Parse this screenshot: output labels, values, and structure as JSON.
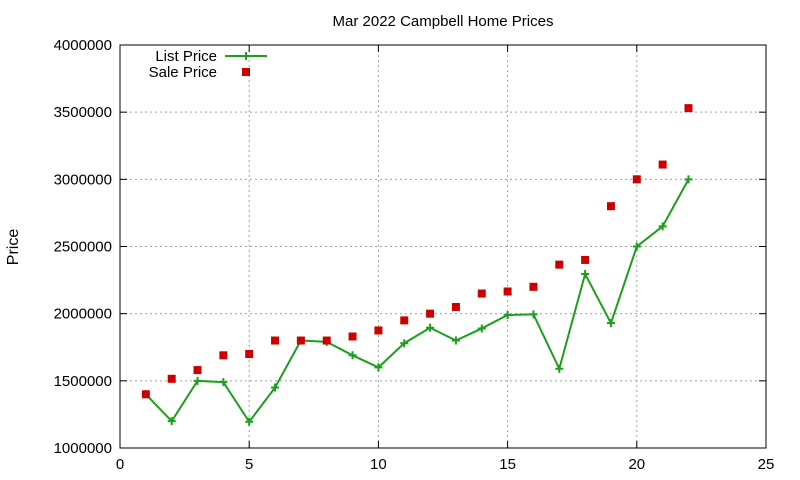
{
  "chart_data": {
    "type": "line",
    "title": "Mar 2022 Campbell Home Prices",
    "xlabel": "",
    "ylabel": "Price",
    "xlim": [
      0,
      25
    ],
    "ylim": [
      1000000,
      4000000
    ],
    "xticks": [
      0,
      5,
      10,
      15,
      20,
      25
    ],
    "yticks": [
      1000000,
      1500000,
      2000000,
      2500000,
      3000000,
      3500000,
      4000000
    ],
    "grid": true,
    "legend_position": "top-left",
    "series": [
      {
        "name": "List Price",
        "style": "line-plus",
        "color": "#1aa01a",
        "x": [
          1,
          2,
          3,
          4,
          5,
          6,
          7,
          8,
          9,
          10,
          11,
          12,
          13,
          14,
          15,
          16,
          17,
          18,
          19,
          20,
          21,
          22
        ],
        "y": [
          1400000,
          1200000,
          1500000,
          1490000,
          1195000,
          1450000,
          1800000,
          1790000,
          1690000,
          1600000,
          1780000,
          1895000,
          1800000,
          1890000,
          1990000,
          1995000,
          1590000,
          2295000,
          1930000,
          2500000,
          2650000,
          3000000
        ]
      },
      {
        "name": "Sale Price",
        "style": "square-marker",
        "color": "#cc0000",
        "x": [
          1,
          2,
          3,
          4,
          5,
          6,
          7,
          8,
          9,
          10,
          11,
          12,
          13,
          14,
          15,
          16,
          17,
          18,
          19,
          20,
          21,
          22
        ],
        "y": [
          1400000,
          1515000,
          1580000,
          1690000,
          1700000,
          1800000,
          1800000,
          1800000,
          1830000,
          1875000,
          1950000,
          2000000,
          2050000,
          2150000,
          2165000,
          2200000,
          2365000,
          2400000,
          2800000,
          3000000,
          3110000,
          3530000
        ]
      }
    ]
  }
}
